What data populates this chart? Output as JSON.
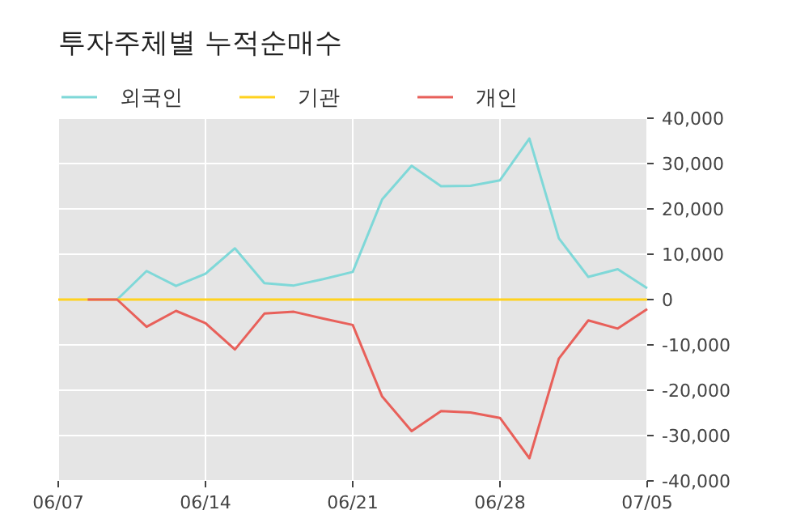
{
  "chart_data": {
    "type": "line",
    "title": "투자주체별 누적순매수",
    "categories": [
      "06/07",
      null,
      null,
      null,
      null,
      "06/14",
      null,
      null,
      null,
      null,
      "06/21",
      null,
      null,
      null,
      null,
      "06/28",
      null,
      null,
      null,
      null,
      "07/05"
    ],
    "series": [
      {
        "name": "외국인",
        "color": "#7fd8d8",
        "values": [
          null,
          null,
          0,
          6300,
          3000,
          5700,
          11300,
          3600,
          3100,
          4500,
          6100,
          22100,
          29500,
          25000,
          25100,
          26300,
          35500,
          13500,
          5000,
          6700,
          2500
        ]
      },
      {
        "name": "기관",
        "color": "#ffd21f",
        "values": [
          0,
          0,
          0,
          0,
          0,
          0,
          0,
          0,
          0,
          0,
          0,
          0,
          0,
          0,
          0,
          0,
          0,
          0,
          0,
          0,
          0
        ]
      },
      {
        "name": "개인",
        "color": "#e8605a",
        "values": [
          null,
          0,
          0,
          -6000,
          -2500,
          -5200,
          -11000,
          -3100,
          -2700,
          -4200,
          -5600,
          -21400,
          -29000,
          -24600,
          -24900,
          -26100,
          -35000,
          -13000,
          -4600,
          -6400,
          -2100
        ]
      }
    ],
    "ylim": [
      -40000,
      40000
    ],
    "yticks": [
      {
        "value": 40000,
        "label": "40,000"
      },
      {
        "value": 30000,
        "label": "30,000"
      },
      {
        "value": 20000,
        "label": "20,000"
      },
      {
        "value": 10000,
        "label": "10,000"
      },
      0,
      {
        "value": -10000,
        "label": "-10,000"
      },
      {
        "value": -20000,
        "label": "-20,000"
      },
      {
        "value": -30000,
        "label": "-30,000"
      },
      {
        "value": -40000,
        "label": "-40,000"
      }
    ],
    "grid": true,
    "legend": "top left"
  }
}
